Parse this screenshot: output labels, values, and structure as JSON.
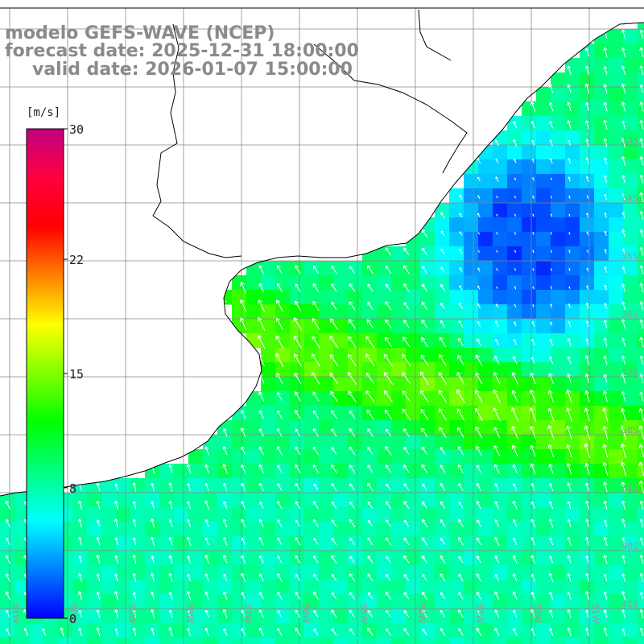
{
  "header": {
    "line1": "modelo GEFS-WAVE (NCEP)",
    "line2": "forecast date: 2025-12-31 18:00:00",
    "line3": "valid date: 2026-01-07 15:00:00"
  },
  "colorbar": {
    "unit": "[m/s]",
    "min": 0,
    "max": 30,
    "tick_labels": [
      "30",
      "22",
      "15",
      "8",
      "0"
    ],
    "tick_values": [
      30,
      22,
      15,
      8,
      0
    ],
    "colors": [
      "#0000ff",
      "#0080ff",
      "#00ffff",
      "#00ff80",
      "#00ff00",
      "#80ff00",
      "#ffff00",
      "#ff8000",
      "#ff0000",
      "#ff0040",
      "#c00080"
    ]
  },
  "axes": {
    "lon_labels": [
      "61W",
      "60W",
      "59W",
      "58W",
      "57W",
      "56W",
      "55W",
      "54W",
      "53W",
      "52W",
      "51W"
    ],
    "lat_labels": [
      "33S",
      "34S",
      "35S",
      "36S",
      "37S",
      "38S",
      "39S",
      "40S",
      "41S"
    ]
  },
  "field": {
    "description_type": "wind-speed",
    "regions": {
      "weak_sw_zone_speed": 2,
      "strong_band_speed": 14,
      "southern_area_speed": 9
    }
  }
}
